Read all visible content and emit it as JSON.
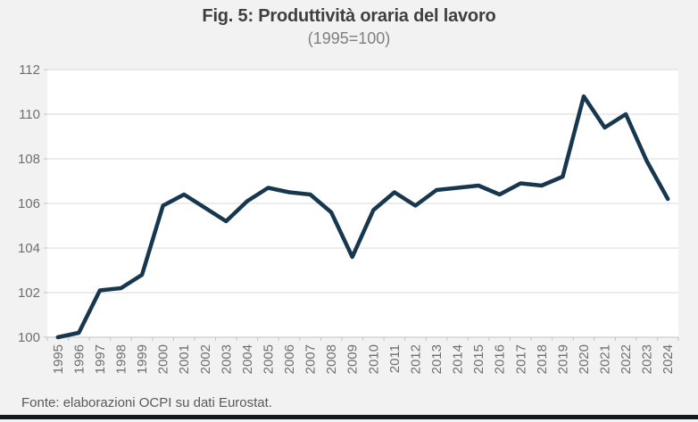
{
  "header": {
    "title": "Fig. 5: Produttività oraria del lavoro",
    "subtitle": "(1995=100)"
  },
  "footer": {
    "source": "Fonte: elaborazioni OCPI su dati Eurostat."
  },
  "colors": {
    "line": "#17374f",
    "background": "#f2f2f2",
    "plot_background": "#ffffff",
    "gridline": "#d9d9d9",
    "axis_line": "#c3c3c3",
    "axis_text": "#6f6f6f",
    "title_text": "#3f3f3f",
    "subtitle_text": "#7f7f7f",
    "source_text": "#595959",
    "bottom_bar": "#101a23"
  },
  "chart_data": {
    "type": "line",
    "title": "Fig. 5: Produttività oraria del lavoro",
    "subtitle": "(1995=100)",
    "x": [
      1995,
      1996,
      1997,
      1998,
      1999,
      2000,
      2001,
      2002,
      2003,
      2004,
      2005,
      2006,
      2007,
      2008,
      2009,
      2010,
      2011,
      2012,
      2013,
      2014,
      2015,
      2016,
      2017,
      2018,
      2019,
      2020,
      2021,
      2022,
      2023,
      2024
    ],
    "values": [
      100.0,
      100.2,
      102.1,
      102.2,
      102.8,
      105.9,
      106.4,
      105.8,
      105.2,
      106.1,
      106.7,
      106.5,
      106.4,
      105.6,
      103.6,
      105.7,
      106.5,
      105.9,
      106.6,
      106.7,
      106.8,
      106.4,
      106.9,
      106.8,
      107.2,
      110.8,
      109.4,
      110.0,
      107.9,
      106.2
    ],
    "yticks": [
      100,
      102,
      104,
      106,
      108,
      110,
      112
    ],
    "ylim": [
      100,
      112
    ],
    "xlabel": "",
    "ylabel": "",
    "grid": true,
    "legend": false
  }
}
